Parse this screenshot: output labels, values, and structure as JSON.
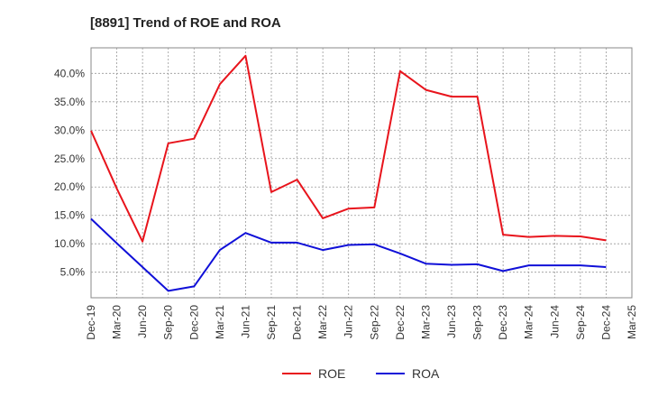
{
  "chart_data": {
    "type": "line",
    "title": "[8891]  Trend of ROE and ROA",
    "xlabel": "",
    "ylabel": "",
    "categories": [
      "Dec-19",
      "Mar-20",
      "Jun-20",
      "Sep-20",
      "Dec-20",
      "Mar-21",
      "Jun-21",
      "Sep-21",
      "Dec-21",
      "Mar-22",
      "Jun-22",
      "Sep-22",
      "Dec-22",
      "Mar-23",
      "Jun-23",
      "Sep-23",
      "Dec-23",
      "Mar-24",
      "Jun-24",
      "Sep-24",
      "Dec-24",
      "Mar-25"
    ],
    "y_ticks": [
      5,
      10,
      15,
      20,
      25,
      30,
      35,
      40
    ],
    "y_tick_labels": [
      "5.0%",
      "10.0%",
      "15.0%",
      "20.0%",
      "25.0%",
      "30.0%",
      "35.0%",
      "40.0%"
    ],
    "ylim": [
      0.5,
      44.5
    ],
    "grid": true,
    "legend_position": "bottom-center",
    "series": [
      {
        "name": "ROE",
        "color": "#e8141c",
        "values": [
          29.9,
          19.7,
          10.4,
          27.7,
          28.5,
          38.1,
          43.1,
          19.1,
          21.3,
          14.5,
          16.2,
          16.4,
          40.4,
          37.1,
          35.9,
          35.9,
          11.6,
          11.2,
          11.4,
          11.3,
          10.6,
          null
        ]
      },
      {
        "name": "ROA",
        "color": "#1010d8",
        "values": [
          14.4,
          10.1,
          5.9,
          1.7,
          2.5,
          8.9,
          11.9,
          10.2,
          10.2,
          8.9,
          9.8,
          9.9,
          8.3,
          6.5,
          6.3,
          6.4,
          5.2,
          6.2,
          6.2,
          6.2,
          5.9,
          null
        ]
      }
    ]
  }
}
